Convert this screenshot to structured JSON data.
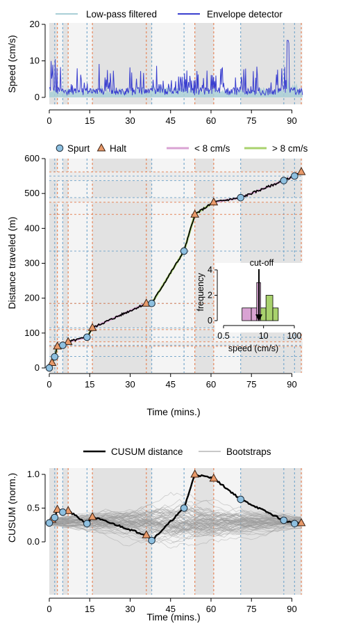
{
  "chart_data": [
    {
      "type": "line",
      "ylabel": "Speed (cm/s)",
      "xlim": [
        0,
        94
      ],
      "ylim": [
        0,
        20
      ],
      "xticks": [
        0,
        15,
        30,
        45,
        60,
        75,
        90
      ],
      "yticks": [
        0,
        10,
        20
      ],
      "legend": {
        "placement": "top",
        "entries": [
          "Low-pass filtered",
          "Envelope detector"
        ]
      },
      "colors": {
        "lowpass": "#a9cfd6",
        "envelope": "#3a3fcf"
      },
      "series": [
        {
          "name": "Low-pass filtered",
          "note": "smoothed speed trace, mostly 0-4 cm/s"
        },
        {
          "name": "Envelope detector",
          "note": "peaks up to ~16 cm/s"
        }
      ]
    },
    {
      "type": "line",
      "ylabel": "Distance traveled (m)",
      "xlabel": "Time (mins.)",
      "xlim": [
        0,
        94
      ],
      "ylim": [
        0,
        600
      ],
      "xticks": [
        0,
        15,
        30,
        45,
        60,
        75,
        90
      ],
      "yticks": [
        0,
        100,
        200,
        300,
        400,
        500,
        600
      ],
      "legend": {
        "placement": "top",
        "entries": [
          "Spurt",
          "Halt",
          "< 8 cm/s",
          "> 8 cm/s"
        ]
      },
      "colors": {
        "spurt": "#8ec0e0",
        "halt": "#e99a6a",
        "slow": "#d9a3d3",
        "fast": "#a9d26d"
      },
      "spurts": [
        [
          0,
          0
        ],
        [
          2,
          32
        ],
        [
          5,
          65
        ],
        [
          14,
          88
        ],
        [
          38,
          185
        ],
        [
          50,
          335
        ],
        [
          71,
          488
        ],
        [
          87,
          537
        ],
        [
          91,
          550
        ]
      ],
      "halts": [
        [
          1,
          15
        ],
        [
          3,
          62
        ],
        [
          7,
          75
        ],
        [
          16,
          115
        ],
        [
          36,
          185
        ],
        [
          54,
          440
        ],
        [
          61,
          475
        ],
        [
          93.5,
          562
        ]
      ],
      "inset": {
        "type": "bar",
        "ylabel": "frequency",
        "xlabel": "speed (cm/s)",
        "xticks": [
          "0.5",
          "10",
          "100"
        ],
        "yticks": [
          0,
          2,
          4
        ],
        "annotation": "cut-off",
        "bars_low": [
          [
            2,
            4,
            1
          ],
          [
            4,
            6,
            1
          ],
          [
            6,
            8,
            3
          ]
        ],
        "bars_high": [
          [
            8,
            12,
            1
          ],
          [
            12,
            20,
            2
          ],
          [
            20,
            30,
            1
          ]
        ]
      }
    },
    {
      "type": "line",
      "ylabel": "CUSUM (norm.)",
      "xlabel": "Time (mins.)",
      "xlim": [
        0,
        94
      ],
      "ylim": [
        -0.5,
        1.1
      ],
      "xticks": [
        0,
        15,
        30,
        45,
        60,
        75,
        90
      ],
      "yticks": [
        "0.0",
        "0.5",
        "1.0"
      ],
      "legend": {
        "placement": "top",
        "entries": [
          "CUSUM distance",
          "Bootstraps"
        ]
      },
      "series": [
        {
          "name": "CUSUM distance",
          "x": [
            0,
            1,
            2,
            3,
            5,
            7,
            14,
            16,
            36,
            38,
            50,
            54,
            61,
            71,
            87,
            91,
            93.5
          ],
          "y": [
            0.28,
            0.33,
            0.36,
            0.48,
            0.44,
            0.46,
            0.27,
            0.37,
            0.1,
            0.02,
            0.5,
            1.0,
            0.94,
            0.63,
            0.32,
            0.27,
            0.28
          ]
        }
      ]
    }
  ]
}
